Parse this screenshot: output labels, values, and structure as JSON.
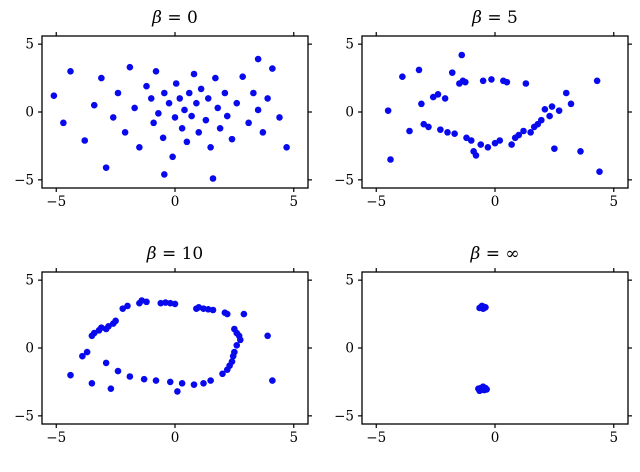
{
  "figure": {
    "background": "#ffffff",
    "axis_color": "#000000",
    "dot_color": "#0909ee",
    "marker_radius": 3.3
  },
  "chart_data": [
    {
      "type": "scatter",
      "title": "β = 0",
      "xlim": [
        -5.6,
        5.6
      ],
      "ylim": [
        -5.6,
        5.6
      ],
      "xticks": [
        -5,
        0,
        5
      ],
      "yticks": [
        -5,
        0,
        5
      ],
      "points": [
        [
          -5.1,
          1.2
        ],
        [
          -4.4,
          3.0
        ],
        [
          -4.7,
          -0.8
        ],
        [
          -3.1,
          2.5
        ],
        [
          -3.4,
          0.5
        ],
        [
          -3.8,
          -2.1
        ],
        [
          -2.6,
          -0.4
        ],
        [
          -2.4,
          1.4
        ],
        [
          -2.1,
          -1.5
        ],
        [
          -1.9,
          3.3
        ],
        [
          -1.7,
          0.3
        ],
        [
          -1.5,
          -2.6
        ],
        [
          -1.2,
          1.9
        ],
        [
          -1.0,
          1.0
        ],
        [
          -0.9,
          -0.8
        ],
        [
          -0.8,
          3.0
        ],
        [
          -0.7,
          -0.1
        ],
        [
          -0.5,
          -1.9
        ],
        [
          -0.45,
          1.4
        ],
        [
          -0.25,
          0.65
        ],
        [
          -0.1,
          -3.3
        ],
        [
          0.0,
          -0.4
        ],
        [
          0.05,
          2.1
        ],
        [
          0.2,
          1.0
        ],
        [
          0.3,
          -1.2
        ],
        [
          0.4,
          0.15
        ],
        [
          0.5,
          -2.2
        ],
        [
          0.6,
          1.4
        ],
        [
          0.7,
          -0.3
        ],
        [
          0.8,
          2.8
        ],
        [
          0.9,
          0.65
        ],
        [
          1.0,
          -1.5
        ],
        [
          1.1,
          1.7
        ],
        [
          1.3,
          -0.6
        ],
        [
          1.4,
          1.0
        ],
        [
          1.5,
          -2.6
        ],
        [
          1.7,
          2.5
        ],
        [
          1.8,
          0.3
        ],
        [
          1.9,
          -1.2
        ],
        [
          2.1,
          1.4
        ],
        [
          2.2,
          -0.3
        ],
        [
          2.4,
          -2.0
        ],
        [
          2.6,
          0.65
        ],
        [
          2.85,
          2.6
        ],
        [
          3.1,
          -0.8
        ],
        [
          3.3,
          1.4
        ],
        [
          3.5,
          0.15
        ],
        [
          3.7,
          -1.5
        ],
        [
          3.9,
          1.0
        ],
        [
          4.1,
          3.2
        ],
        [
          4.4,
          -0.4
        ],
        [
          4.7,
          -2.6
        ],
        [
          3.5,
          3.9
        ],
        [
          1.6,
          -4.9
        ],
        [
          -0.45,
          -4.6
        ],
        [
          -2.9,
          -4.1
        ]
      ]
    },
    {
      "type": "scatter",
      "title": "β = 5",
      "xlim": [
        -5.6,
        5.6
      ],
      "ylim": [
        -5.6,
        5.6
      ],
      "xticks": [
        -5,
        0,
        5
      ],
      "yticks": [
        -5,
        0,
        5
      ],
      "points": [
        [
          -4.5,
          0.1
        ],
        [
          -4.4,
          -3.5
        ],
        [
          -3.9,
          2.6
        ],
        [
          -3.2,
          3.1
        ],
        [
          -3.6,
          -1.4
        ],
        [
          -3.1,
          0.6
        ],
        [
          -3.0,
          -0.9
        ],
        [
          -2.8,
          -1.1
        ],
        [
          -2.6,
          1.1
        ],
        [
          -2.4,
          1.3
        ],
        [
          -2.3,
          -1.3
        ],
        [
          -2.1,
          1.0
        ],
        [
          -2.0,
          -1.5
        ],
        [
          -1.8,
          2.9
        ],
        [
          -1.7,
          -1.6
        ],
        [
          -1.5,
          2.1
        ],
        [
          -1.4,
          4.2
        ],
        [
          -1.35,
          2.3
        ],
        [
          -1.25,
          2.2
        ],
        [
          -1.2,
          -1.9
        ],
        [
          -1.0,
          -2.1
        ],
        [
          -0.9,
          -2.9
        ],
        [
          -0.8,
          -3.2
        ],
        [
          -0.6,
          -2.4
        ],
        [
          -0.5,
          2.3
        ],
        [
          -0.3,
          -2.6
        ],
        [
          -0.15,
          2.4
        ],
        [
          0.0,
          -2.3
        ],
        [
          0.2,
          -2.1
        ],
        [
          0.35,
          2.3
        ],
        [
          0.5,
          2.2
        ],
        [
          0.7,
          -2.4
        ],
        [
          0.85,
          -1.9
        ],
        [
          1.0,
          -1.7
        ],
        [
          1.2,
          -1.4
        ],
        [
          1.3,
          2.1
        ],
        [
          1.5,
          -1.5
        ],
        [
          1.65,
          -1.1
        ],
        [
          1.8,
          -0.9
        ],
        [
          1.95,
          -0.6
        ],
        [
          2.1,
          0.2
        ],
        [
          2.3,
          -0.3
        ],
        [
          2.4,
          0.4
        ],
        [
          2.5,
          -2.7
        ],
        [
          2.7,
          0.1
        ],
        [
          3.0,
          1.4
        ],
        [
          3.2,
          0.6
        ],
        [
          3.6,
          -2.9
        ],
        [
          4.3,
          2.3
        ],
        [
          4.4,
          -4.4
        ]
      ]
    },
    {
      "type": "scatter",
      "title": "β = 10",
      "xlim": [
        -5.6,
        5.6
      ],
      "ylim": [
        -5.6,
        5.6
      ],
      "xticks": [
        -5,
        0,
        5
      ],
      "yticks": [
        -5,
        0,
        5
      ],
      "points": [
        [
          -3.9,
          -0.6
        ],
        [
          -3.7,
          -0.3
        ],
        [
          -3.5,
          0.9
        ],
        [
          -3.4,
          1.1
        ],
        [
          -3.2,
          1.3
        ],
        [
          -3.1,
          1.5
        ],
        [
          -2.9,
          1.4
        ],
        [
          -2.8,
          1.6
        ],
        [
          -2.6,
          1.8
        ],
        [
          -2.5,
          2.0
        ],
        [
          -2.2,
          2.9
        ],
        [
          -2.0,
          3.1
        ],
        [
          -1.5,
          3.3
        ],
        [
          -1.4,
          3.5
        ],
        [
          -1.2,
          3.4
        ],
        [
          -0.6,
          3.3
        ],
        [
          -0.4,
          3.35
        ],
        [
          -0.2,
          3.3
        ],
        [
          0.0,
          3.25
        ],
        [
          0.9,
          2.9
        ],
        [
          1.0,
          3.0
        ],
        [
          1.2,
          2.9
        ],
        [
          1.4,
          2.85
        ],
        [
          1.6,
          2.8
        ],
        [
          2.1,
          2.6
        ],
        [
          2.2,
          2.5
        ],
        [
          2.5,
          1.4
        ],
        [
          2.6,
          1.1
        ],
        [
          2.7,
          0.9
        ],
        [
          2.75,
          0.6
        ],
        [
          2.6,
          0.2
        ],
        [
          2.5,
          -0.3
        ],
        [
          2.45,
          -0.6
        ],
        [
          2.4,
          -1.0
        ],
        [
          2.3,
          -1.3
        ],
        [
          2.2,
          -1.6
        ],
        [
          2.0,
          -1.9
        ],
        [
          1.5,
          -2.4
        ],
        [
          1.2,
          -2.6
        ],
        [
          0.8,
          -2.7
        ],
        [
          0.3,
          -2.6
        ],
        [
          -0.2,
          -2.5
        ],
        [
          -0.8,
          -2.4
        ],
        [
          -1.3,
          -2.3
        ],
        [
          -1.9,
          -2.1
        ],
        [
          -2.4,
          -1.7
        ],
        [
          -2.9,
          -1.1
        ],
        [
          -3.5,
          -2.6
        ],
        [
          3.9,
          0.9
        ],
        [
          4.1,
          -2.4
        ],
        [
          -4.4,
          -2.0
        ],
        [
          2.9,
          2.5
        ],
        [
          -2.7,
          -3.0
        ],
        [
          0.1,
          -3.2
        ]
      ]
    },
    {
      "type": "scatter",
      "title": "β = ∞",
      "xlim": [
        -5.6,
        5.6
      ],
      "ylim": [
        -5.6,
        5.6
      ],
      "xticks": [
        -5,
        0,
        5
      ],
      "yticks": [
        -5,
        0,
        5
      ],
      "points": [
        [
          -0.6,
          3.0
        ],
        [
          -0.5,
          3.05
        ],
        [
          -0.45,
          2.95
        ],
        [
          -0.55,
          3.1
        ],
        [
          -0.4,
          3.0
        ],
        [
          -0.5,
          2.9
        ],
        [
          -0.65,
          2.95
        ],
        [
          -0.7,
          -3.0
        ],
        [
          -0.6,
          -2.95
        ],
        [
          -0.5,
          -3.0
        ],
        [
          -0.45,
          -3.1
        ],
        [
          -0.55,
          -3.05
        ],
        [
          -0.4,
          -2.95
        ],
        [
          -0.65,
          -3.15
        ],
        [
          -0.5,
          -2.85
        ],
        [
          -0.35,
          -3.05
        ],
        [
          -0.6,
          -3.1
        ]
      ]
    }
  ]
}
